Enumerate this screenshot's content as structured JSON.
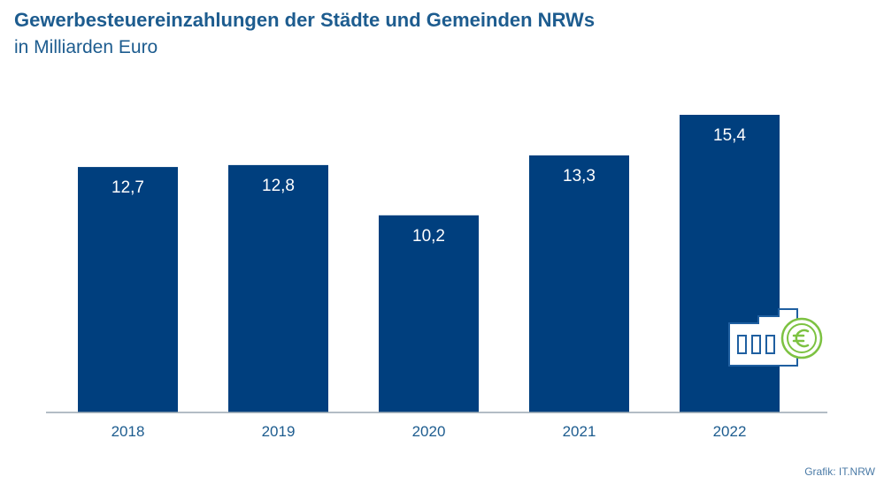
{
  "title": "Gewerbesteuereinzahlungen der Städte und Gemeinden NRWs",
  "subtitle": "in Milliarden Euro",
  "credit": "Grafik: IT.NRW",
  "colors": {
    "bar": "#003f7e",
    "bar_label": "#ffffff",
    "axis_label": "#1d5c8f",
    "baseline": "#9aa7b2",
    "icon_building": "#1f5fa0",
    "icon_coin": "#7dc242"
  },
  "icons": [
    "factory-building-icon",
    "euro-coin-icon"
  ],
  "chart_data": {
    "type": "bar",
    "categories": [
      "2018",
      "2019",
      "2020",
      "2021",
      "2022"
    ],
    "values": [
      12.7,
      12.8,
      10.2,
      13.3,
      15.4
    ],
    "value_labels": [
      "12,7",
      "12,8",
      "10,2",
      "13,3",
      "15,4"
    ],
    "title": "Gewerbesteuereinzahlungen der Städte und Gemeinden NRWs",
    "subtitle": "in Milliarden Euro",
    "xlabel": "",
    "ylabel": "",
    "ylim": [
      0,
      15.4
    ],
    "grid": false,
    "legend": "none"
  }
}
